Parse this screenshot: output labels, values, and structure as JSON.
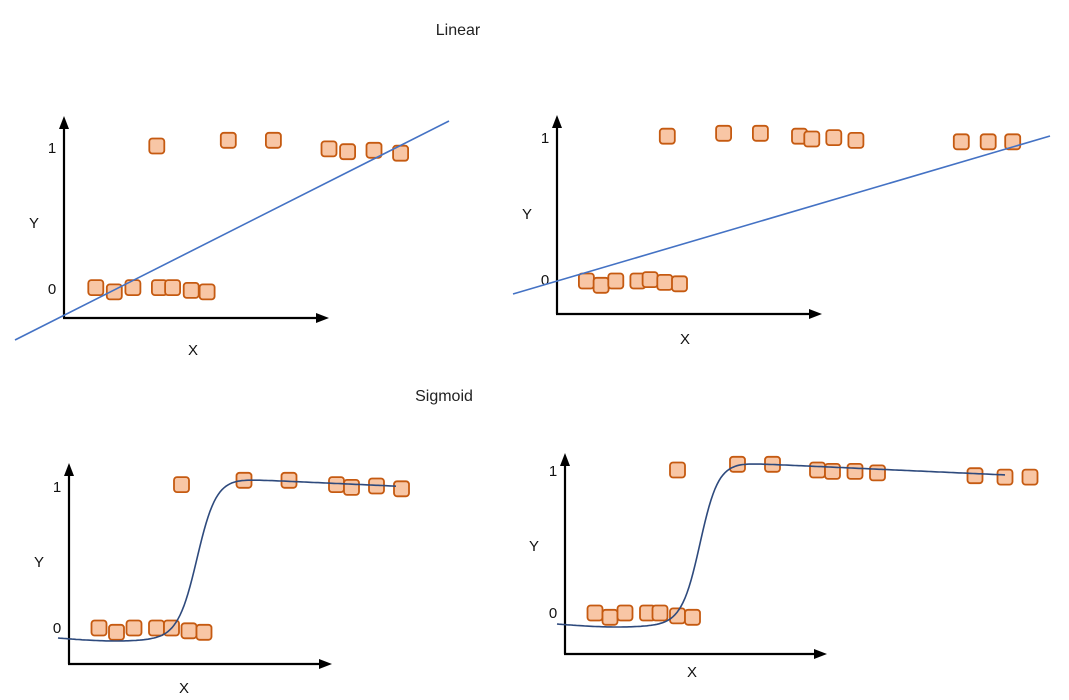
{
  "sections": {
    "linear_title": "Linear",
    "sigmoid_title": "Sigmoid"
  },
  "panels": [
    {
      "id": "linear-left",
      "curve_type": "linear",
      "labels": {
        "y_one": "1",
        "y_zero": "0",
        "y_axis": "Y",
        "x_axis": "X"
      },
      "points": [
        [
          0.35,
          1.0
        ],
        [
          0.62,
          1.04
        ],
        [
          0.79,
          1.04
        ],
        [
          1.0,
          0.98
        ],
        [
          1.07,
          0.96
        ],
        [
          1.17,
          0.97
        ],
        [
          1.27,
          0.95
        ],
        [
          0.12,
          0.01
        ],
        [
          0.19,
          -0.02
        ],
        [
          0.26,
          0.01
        ],
        [
          0.36,
          0.01
        ],
        [
          0.41,
          0.01
        ],
        [
          0.48,
          -0.01
        ],
        [
          0.54,
          -0.02
        ]
      ]
    },
    {
      "id": "linear-right",
      "curve_type": "linear",
      "labels": {
        "y_one": "1",
        "y_zero": "0",
        "y_axis": "Y",
        "x_axis": "X"
      },
      "points": [
        [
          0.45,
          1.02
        ],
        [
          0.68,
          1.04
        ],
        [
          0.83,
          1.04
        ],
        [
          0.99,
          1.02
        ],
        [
          1.04,
          1.0
        ],
        [
          1.13,
          1.01
        ],
        [
          1.22,
          0.99
        ],
        [
          1.65,
          0.98
        ],
        [
          1.76,
          0.98
        ],
        [
          1.86,
          0.98
        ],
        [
          0.12,
          0.0
        ],
        [
          0.18,
          -0.03
        ],
        [
          0.24,
          0.0
        ],
        [
          0.33,
          0.0
        ],
        [
          0.38,
          0.01
        ],
        [
          0.44,
          -0.01
        ],
        [
          0.5,
          -0.02
        ]
      ]
    },
    {
      "id": "sigmoid-left",
      "curve_type": "sigmoid",
      "labels": {
        "y_one": "1",
        "y_zero": "0",
        "y_axis": "Y",
        "x_axis": "X"
      },
      "points": [
        [
          0.45,
          1.01
        ],
        [
          0.7,
          1.04
        ],
        [
          0.88,
          1.04
        ],
        [
          1.07,
          1.01
        ],
        [
          1.13,
          0.99
        ],
        [
          1.23,
          1.0
        ],
        [
          1.33,
          0.98
        ],
        [
          0.12,
          0.0
        ],
        [
          0.19,
          -0.03
        ],
        [
          0.26,
          0.0
        ],
        [
          0.35,
          0.0
        ],
        [
          0.41,
          0.0
        ],
        [
          0.48,
          -0.02
        ],
        [
          0.54,
          -0.03
        ]
      ]
    },
    {
      "id": "sigmoid-right",
      "curve_type": "sigmoid",
      "labels": {
        "y_one": "1",
        "y_zero": "0",
        "y_axis": "Y",
        "x_axis": "X"
      },
      "points": [
        [
          0.45,
          1.0
        ],
        [
          0.69,
          1.04
        ],
        [
          0.83,
          1.04
        ],
        [
          1.01,
          1.0
        ],
        [
          1.07,
          0.99
        ],
        [
          1.16,
          0.99
        ],
        [
          1.25,
          0.98
        ],
        [
          1.64,
          0.96
        ],
        [
          1.76,
          0.95
        ],
        [
          1.86,
          0.95
        ],
        [
          0.12,
          0.0
        ],
        [
          0.18,
          -0.03
        ],
        [
          0.24,
          0.0
        ],
        [
          0.33,
          0.0
        ],
        [
          0.38,
          0.0
        ],
        [
          0.45,
          -0.02
        ],
        [
          0.51,
          -0.03
        ]
      ]
    }
  ],
  "colors": {
    "point_fill": "#f8c6a5",
    "point_stroke": "#c55a11",
    "linear_line": "#4472c4",
    "sigmoid_line": "#2e4a7d",
    "axis": "#000000"
  }
}
